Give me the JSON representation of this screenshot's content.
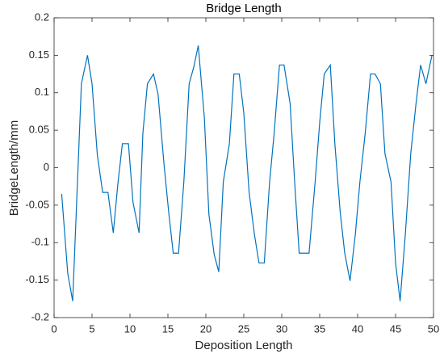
{
  "chart_data": {
    "type": "line",
    "title": "Bridge Length",
    "x_label": "Deposition Length",
    "y_label": "BridgeLength/mm",
    "x": [
      1,
      1.8,
      2.45,
      3.6,
      4.4,
      5.0,
      5.7,
      6.4,
      7.1,
      7.8,
      8.4,
      9.0,
      9.8,
      10.4,
      11.2,
      11.7,
      12.3,
      13.1,
      13.7,
      14.5,
      15.1,
      15.7,
      16.4,
      17.1,
      17.8,
      18.4,
      19.0,
      19.8,
      20.4,
      21.1,
      21.7,
      22.3,
      23.1,
      23.7,
      24.4,
      25.0,
      25.7,
      26.4,
      27.0,
      27.7,
      28.4,
      29.0,
      29.7,
      30.3,
      31.1,
      31.7,
      32.3,
      33.0,
      33.6,
      34.4,
      35.0,
      35.6,
      36.4,
      37.0,
      37.7,
      38.3,
      39.0,
      39.7,
      40.3,
      41.0,
      41.7,
      42.3,
      43.0,
      43.6,
      44.4,
      45.0,
      45.6,
      46.3,
      47.0,
      47.7,
      48.3,
      49.0,
      49.8
    ],
    "series": [
      {
        "name": "Bridge Length",
        "color": "#0072bd",
        "values": [
          -0.035,
          -0.141,
          -0.178,
          0.112,
          0.15,
          0.112,
          0.017,
          -0.033,
          -0.033,
          -0.087,
          -0.022,
          0.032,
          0.032,
          -0.046,
          -0.087,
          0.046,
          0.112,
          0.125,
          0.098,
          0.003,
          -0.059,
          -0.114,
          -0.114,
          -0.019,
          0.112,
          0.134,
          0.163,
          0.067,
          -0.062,
          -0.116,
          -0.139,
          -0.019,
          0.032,
          0.125,
          0.125,
          0.073,
          -0.033,
          -0.089,
          -0.127,
          -0.127,
          -0.019,
          0.046,
          0.137,
          0.137,
          0.086,
          -0.019,
          -0.114,
          -0.114,
          -0.114,
          -0.019,
          0.06,
          0.125,
          0.137,
          0.032,
          -0.059,
          -0.114,
          -0.151,
          -0.089,
          -0.019,
          0.046,
          0.125,
          0.125,
          0.112,
          0.019,
          -0.019,
          -0.127,
          -0.178,
          -0.087,
          0.019,
          0.086,
          0.137,
          0.112,
          0.15
        ]
      }
    ],
    "xlim": [
      0,
      50
    ],
    "xticks": [
      0,
      5,
      10,
      15,
      20,
      25,
      30,
      35,
      40,
      45,
      50
    ],
    "ylim": [
      -0.2,
      0.2
    ],
    "yticks": [
      -0.2,
      -0.15,
      -0.1,
      -0.05,
      0,
      0.05,
      0.1,
      0.15,
      0.2
    ]
  }
}
